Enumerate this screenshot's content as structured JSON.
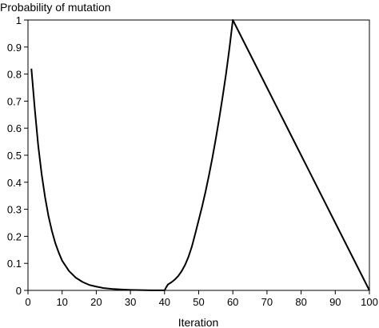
{
  "chart_data": {
    "type": "line",
    "ylabel": "Probability of mutation",
    "xlabel": "Iteration",
    "xlim": [
      0,
      100
    ],
    "ylim": [
      0,
      1
    ],
    "x_ticks": [
      0,
      10,
      20,
      30,
      40,
      50,
      60,
      70,
      80,
      90,
      100
    ],
    "y_ticks": [
      0,
      0.1,
      0.2,
      0.3,
      0.4,
      0.5,
      0.6,
      0.7,
      0.8,
      0.9,
      1
    ],
    "x_tick_labels": [
      "0",
      "10",
      "20",
      "30",
      "40",
      "50",
      "60",
      "70",
      "80",
      "90",
      "100"
    ],
    "y_tick_labels": [
      "0",
      "0.1",
      "0.2",
      "0.3",
      "0.4",
      "0.5",
      "0.6",
      "0.7",
      "0.8",
      "0.9",
      "1"
    ],
    "grid": false,
    "series": [
      {
        "x": [
          1,
          2,
          3,
          4,
          5,
          6,
          7,
          8,
          9,
          10,
          12,
          14,
          16,
          18,
          20,
          22,
          25,
          28,
          30,
          33,
          36,
          38,
          40,
          40.5,
          41,
          42,
          43,
          44,
          45,
          46,
          47,
          48,
          49,
          50,
          51,
          52,
          53,
          54,
          55,
          56,
          57,
          58,
          59,
          60,
          65,
          70,
          75,
          80,
          85,
          90,
          95,
          100
        ],
        "y": [
          0.82,
          0.67,
          0.535,
          0.43,
          0.345,
          0.275,
          0.22,
          0.175,
          0.14,
          0.11,
          0.072,
          0.047,
          0.031,
          0.02,
          0.014,
          0.009,
          0.005,
          0.003,
          0.002,
          0.001,
          0.0005,
          0.0003,
          0.0002,
          0.012,
          0.022,
          0.03,
          0.04,
          0.053,
          0.071,
          0.094,
          0.124,
          0.162,
          0.21,
          0.26,
          0.31,
          0.365,
          0.425,
          0.49,
          0.56,
          0.635,
          0.715,
          0.8,
          0.895,
          1.0,
          0.875,
          0.75,
          0.625,
          0.5,
          0.375,
          0.25,
          0.125,
          0.0
        ]
      }
    ]
  }
}
